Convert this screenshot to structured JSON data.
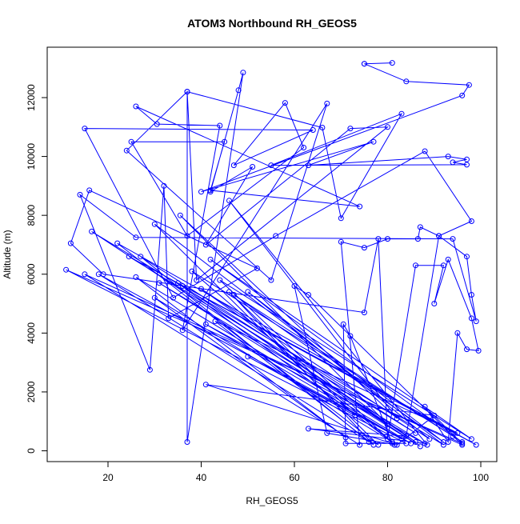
{
  "chart_data": {
    "type": "line",
    "title": "ATOM3 Northbound RH_GEOS5",
    "xlabel": "RH_GEOS5",
    "ylabel": "Altitude (m)",
    "xlim": [
      10,
      100
    ],
    "ylim": [
      0,
      13000
    ],
    "xticks": [
      "20",
      "40",
      "60",
      "80",
      "100"
    ],
    "yticks": [
      "0",
      "2000",
      "4000",
      "6000",
      "8000",
      "10000",
      "12000"
    ],
    "grid": false,
    "legend": "none",
    "color": "#0000ff",
    "series": [
      {
        "points": [
          [
            75,
            13150
          ],
          [
            81,
            13180
          ],
          [
            75,
            13150
          ],
          [
            84,
            12550
          ],
          [
            97.5,
            12430
          ],
          [
            96,
            12070
          ],
          [
            40,
            8800
          ],
          [
            77,
            10500
          ],
          [
            63,
            9700
          ],
          [
            93,
            10000
          ],
          [
            97,
            9900
          ],
          [
            94,
            9800
          ],
          [
            97,
            9720
          ],
          [
            55,
            9700
          ],
          [
            83,
            11450
          ],
          [
            70,
            7900
          ],
          [
            66,
            10980
          ],
          [
            37,
            12200
          ],
          [
            37,
            300
          ],
          [
            49,
            12850
          ],
          [
            48,
            12250
          ],
          [
            42,
            8800
          ],
          [
            51,
            9650
          ],
          [
            41,
            7000
          ],
          [
            72,
            10950
          ],
          [
            80,
            11000
          ],
          [
            39,
            5800
          ],
          [
            37,
            12200
          ],
          [
            24,
            10200
          ],
          [
            55,
            5800
          ],
          [
            67,
            11800
          ],
          [
            36,
            4100
          ],
          [
            44,
            11050
          ],
          [
            30.5,
            11100
          ],
          [
            26,
            11700
          ],
          [
            74,
            8300
          ],
          [
            42,
            8850
          ],
          [
            45,
            10500
          ],
          [
            25,
            10500
          ],
          [
            37,
            7300
          ],
          [
            62,
            10300
          ],
          [
            58,
            11820
          ],
          [
            47,
            9700
          ],
          [
            64,
            10900
          ],
          [
            15,
            10950
          ],
          [
            34,
            5200
          ],
          [
            56,
            7300
          ],
          [
            88,
            10180
          ],
          [
            98,
            7800
          ],
          [
            91,
            7300
          ],
          [
            97,
            6600
          ],
          [
            98,
            5300
          ],
          [
            99,
            4400
          ],
          [
            94,
            7200
          ],
          [
            26,
            7250
          ],
          [
            14,
            8700
          ],
          [
            29,
            2750
          ],
          [
            32,
            9000
          ],
          [
            33,
            4500
          ],
          [
            52,
            6200
          ],
          [
            16,
            8850
          ],
          [
            12,
            7050
          ],
          [
            19,
            6000
          ],
          [
            75,
            4700
          ],
          [
            78,
            7200
          ],
          [
            80,
            400
          ],
          [
            86,
            6300
          ],
          [
            92,
            6300
          ],
          [
            90,
            5000
          ],
          [
            93,
            6500
          ],
          [
            98,
            4500
          ],
          [
            99.5,
            3400
          ],
          [
            97,
            3450
          ],
          [
            95,
            4000
          ],
          [
            93,
            300
          ],
          [
            88,
            1500
          ],
          [
            96,
            250
          ],
          [
            11,
            6150
          ],
          [
            84,
            250
          ],
          [
            71,
            250
          ],
          [
            70.5,
            4300
          ],
          [
            72,
            3900
          ],
          [
            81,
            250
          ],
          [
            41,
            2250
          ],
          [
            90,
            1200
          ],
          [
            82,
            200
          ],
          [
            67,
            600
          ],
          [
            60,
            5600
          ],
          [
            63,
            5300
          ],
          [
            96,
            200
          ],
          [
            15,
            6000
          ],
          [
            74,
            200
          ],
          [
            70,
            7100
          ],
          [
            75,
            6900
          ],
          [
            80,
            7200
          ],
          [
            86.5,
            7200
          ],
          [
            87,
            7600
          ],
          [
            91,
            7300
          ],
          [
            84,
            500
          ],
          [
            63,
            750
          ],
          [
            88,
            250
          ],
          [
            31,
            5700
          ],
          [
            87,
            150
          ],
          [
            16.5,
            7450
          ],
          [
            92,
            200
          ],
          [
            30,
            7700
          ],
          [
            78,
            200
          ],
          [
            22,
            7050
          ],
          [
            99,
            200
          ],
          [
            24.5,
            6600
          ],
          [
            86,
            600
          ],
          [
            27,
            6600
          ],
          [
            76,
            300
          ],
          [
            18,
            6000
          ],
          [
            85,
            250
          ],
          [
            26,
            5900
          ],
          [
            71,
            450
          ],
          [
            30,
            5200
          ],
          [
            81,
            300
          ],
          [
            35,
            5700
          ],
          [
            95,
            600
          ],
          [
            43,
            4400
          ],
          [
            77,
            200
          ],
          [
            46,
            5400
          ],
          [
            73,
            1200
          ],
          [
            50,
            3200
          ],
          [
            83,
            400
          ],
          [
            41,
            4300
          ],
          [
            88.5,
            200
          ],
          [
            46,
            8500
          ],
          [
            82,
            1100
          ],
          [
            35.5,
            8000
          ],
          [
            80,
            900
          ],
          [
            36,
            5600
          ],
          [
            86,
            300
          ],
          [
            40,
            5500
          ],
          [
            89,
            400
          ],
          [
            50,
            5400
          ],
          [
            92,
            300
          ],
          [
            47,
            5300
          ],
          [
            96,
            300
          ],
          [
            42,
            6500
          ],
          [
            98,
            400
          ],
          [
            44,
            5800
          ],
          [
            81.5,
            200
          ],
          [
            38,
            6100
          ],
          [
            94,
            500
          ]
        ]
      }
    ]
  }
}
